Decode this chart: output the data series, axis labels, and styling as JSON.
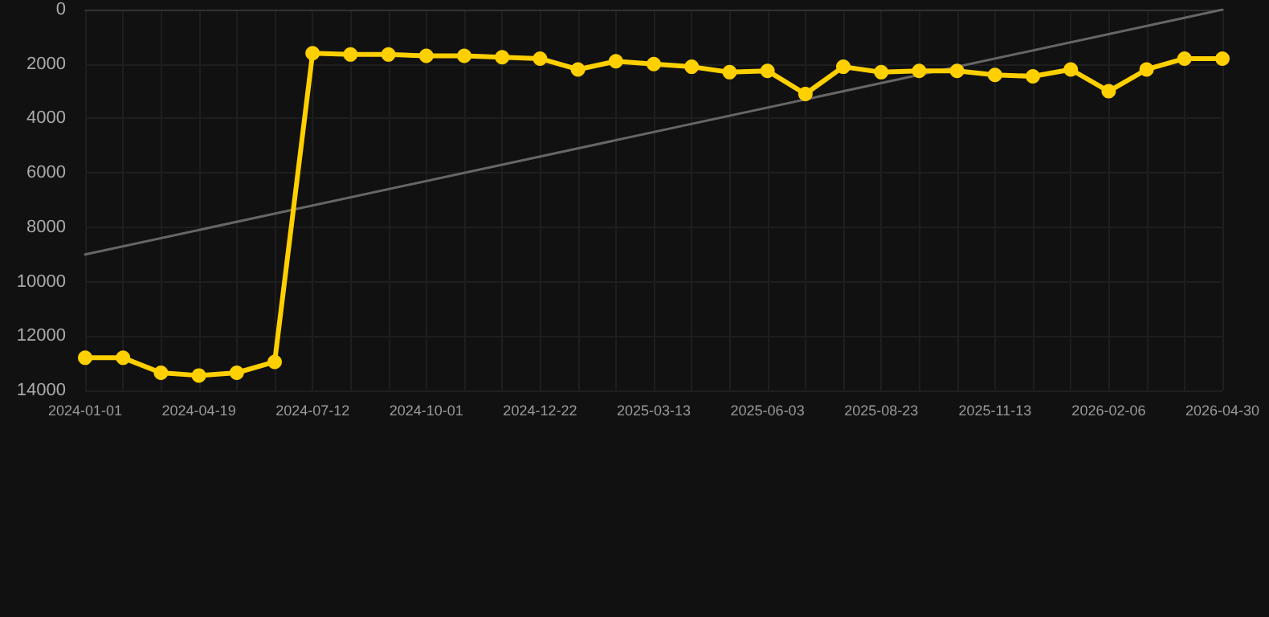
{
  "chart_data": {
    "type": "line",
    "categories": [
      "2024-01-01",
      null,
      null,
      "2024-04-19",
      null,
      null,
      "2024-07-12",
      null,
      null,
      "2024-10-01",
      null,
      null,
      "2024-12-22",
      null,
      null,
      "2025-03-13",
      null,
      null,
      "2025-06-03",
      null,
      null,
      "2025-08-23",
      null,
      null,
      "2025-11-13",
      null,
      null,
      "2026-02-06",
      null,
      null,
      "2026-04-30"
    ],
    "series": [
      {
        "color": "#ffd000",
        "values": [
          12800,
          12800,
          13350,
          13450,
          13350,
          12950,
          1600,
          1650,
          1650,
          1700,
          1700,
          1750,
          1800,
          2200,
          1900,
          2000,
          2100,
          2300,
          2250,
          3100,
          2100,
          2300,
          2250,
          2250,
          2400,
          2450,
          2200,
          3000,
          2200,
          1800,
          1800
        ]
      },
      {
        "type": "line",
        "color": "#666666",
        "values": [
          9000,
          null,
          null,
          null,
          null,
          null,
          null,
          null,
          null,
          null,
          null,
          null,
          null,
          null,
          null,
          null,
          null,
          null,
          null,
          null,
          null,
          null,
          null,
          null,
          null,
          null,
          null,
          null,
          null,
          null,
          0
        ],
        "marker": "none"
      }
    ],
    "ylim": [
      14000,
      0
    ],
    "yticks": [
      0,
      2000,
      4000,
      6000,
      8000,
      10000,
      12000,
      14000
    ],
    "grid": true,
    "marker": "circle",
    "line_style": "solid"
  }
}
